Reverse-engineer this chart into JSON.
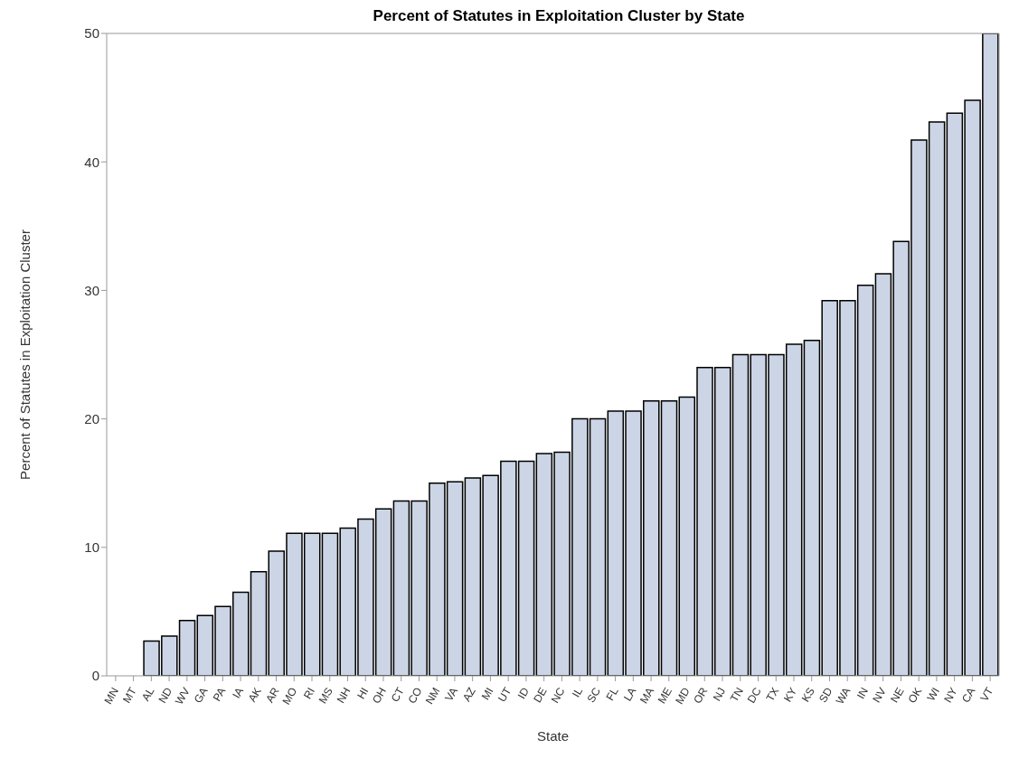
{
  "chart_data": {
    "type": "bar",
    "title": "Percent of Statutes in Exploitation Cluster by State",
    "xlabel": "State",
    "ylabel": "Percent of Statutes in Exploitation Cluster",
    "categories": [
      "MN",
      "MT",
      "AL",
      "ND",
      "WV",
      "GA",
      "PA",
      "IA",
      "AK",
      "AR",
      "MO",
      "RI",
      "MS",
      "NH",
      "HI",
      "OH",
      "CT",
      "CO",
      "NM",
      "VA",
      "AZ",
      "MI",
      "UT",
      "ID",
      "DE",
      "NC",
      "IL",
      "SC",
      "FL",
      "LA",
      "MA",
      "ME",
      "MD",
      "OR",
      "NJ",
      "TN",
      "DC",
      "TX",
      "KY",
      "KS",
      "SD",
      "WA",
      "IN",
      "NV",
      "NE",
      "OK",
      "WI",
      "NY",
      "CA",
      "VT"
    ],
    "values": [
      0,
      0,
      2.7,
      3.1,
      4.3,
      4.7,
      5.4,
      6.5,
      8.1,
      9.7,
      11.1,
      11.1,
      11.1,
      11.5,
      12.2,
      13.0,
      13.6,
      13.6,
      15.0,
      15.1,
      15.4,
      15.6,
      16.7,
      16.7,
      17.3,
      17.4,
      20.0,
      20.0,
      20.6,
      20.6,
      21.4,
      21.4,
      21.7,
      24.0,
      24.0,
      25.0,
      25.0,
      25.0,
      25.8,
      26.1,
      29.2,
      29.2,
      30.4,
      31.3,
      33.8,
      41.7,
      43.1,
      43.8,
      44.8,
      50.0
    ],
    "color": "#cbd5e5",
    "ylim": [
      0,
      50
    ],
    "yticks": [
      0,
      10,
      20,
      30,
      40,
      50
    ],
    "grid": false
  }
}
